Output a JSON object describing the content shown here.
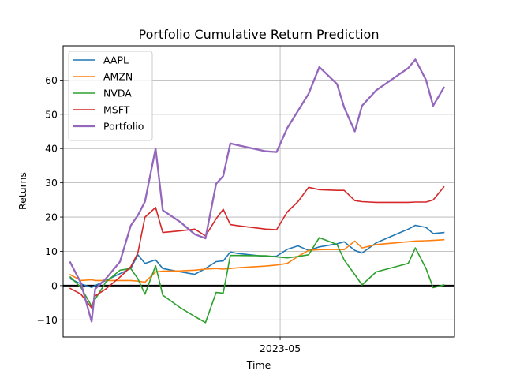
{
  "chart_data": {
    "type": "line",
    "title": "Portfolio Cumulative Return Prediction",
    "xlabel": "Time",
    "ylabel": "Returns",
    "xlim": [
      "2023-03-01",
      "2023-06-19"
    ],
    "ylim": [
      -15,
      70
    ],
    "yticks": [
      -10,
      0,
      10,
      20,
      30,
      40,
      50,
      60
    ],
    "xticks": [
      {
        "date": "2023-05-01",
        "label": "2023-05"
      }
    ],
    "grid": true,
    "zero_line": 0,
    "legend_position": "top-left",
    "x": [
      "2023-03-03",
      "2023-03-06",
      "2023-03-09",
      "2023-03-10",
      "2023-03-13",
      "2023-03-17",
      "2023-03-20",
      "2023-03-22",
      "2023-03-24",
      "2023-03-27",
      "2023-03-29",
      "2023-04-03",
      "2023-04-07",
      "2023-04-10",
      "2023-04-13",
      "2023-04-15",
      "2023-04-17",
      "2023-04-19",
      "2023-04-27",
      "2023-04-30",
      "2023-05-03",
      "2023-05-06",
      "2023-05-09",
      "2023-05-12",
      "2023-05-17",
      "2023-05-19",
      "2023-05-22",
      "2023-05-24",
      "2023-05-28",
      "2023-06-06",
      "2023-06-08",
      "2023-06-11",
      "2023-06-13",
      "2023-06-16"
    ],
    "series": [
      {
        "name": "AAPL",
        "color": "#1f77b4",
        "values": [
          2.0,
          0.5,
          -0.5,
          0.0,
          1.5,
          3.5,
          5.0,
          9.0,
          6.5,
          7.5,
          5.0,
          4.0,
          3.3,
          5.0,
          7.0,
          7.2,
          9.8,
          9.4,
          8.5,
          8.6,
          10.6,
          11.6,
          10.3,
          11.3,
          12.2,
          12.8,
          10.3,
          9.5,
          12.5,
          16.5,
          17.6,
          17.0,
          15.2,
          15.5
        ]
      },
      {
        "name": "AMZN",
        "color": "#ff7f0e",
        "values": [
          3.2,
          1.5,
          1.7,
          1.5,
          1.5,
          1.5,
          1.5,
          1.3,
          1.0,
          4.0,
          4.2,
          4.3,
          4.5,
          4.8,
          5.0,
          4.8,
          5.0,
          5.2,
          5.7,
          6.0,
          6.5,
          8.5,
          10.3,
          10.5,
          10.6,
          10.5,
          13.0,
          11.0,
          12.0,
          12.8,
          13.0,
          13.1,
          13.2,
          13.4
        ]
      },
      {
        "name": "NVDA",
        "color": "#2ca02c",
        "values": [
          2.5,
          -0.5,
          -6.0,
          -4.0,
          1.0,
          4.5,
          5.0,
          2.0,
          -2.5,
          5.8,
          -2.8,
          -6.5,
          -9.0,
          -10.8,
          -2.0,
          -2.2,
          8.8,
          8.8,
          8.7,
          8.4,
          8.1,
          8.5,
          9.0,
          14.0,
          12.0,
          7.5,
          3.2,
          0.2,
          4.0,
          6.5,
          11.0,
          5.0,
          -0.6,
          0.2
        ]
      },
      {
        "name": "MSFT",
        "color": "#d62728",
        "values": [
          -0.8,
          -2.5,
          -6.5,
          -3.0,
          -1.0,
          2.5,
          5.5,
          9.5,
          20.0,
          22.8,
          15.5,
          16.0,
          16.5,
          14.5,
          19.5,
          22.3,
          17.8,
          17.5,
          16.5,
          16.3,
          21.5,
          24.5,
          28.7,
          28.0,
          27.8,
          27.8,
          24.8,
          24.5,
          24.3,
          24.3,
          24.4,
          24.4,
          25.0,
          28.8
        ]
      },
      {
        "name": "Portfolio",
        "color": "#9467bd",
        "values": [
          6.8,
          0.8,
          -10.5,
          -1.0,
          2.0,
          7.0,
          17.5,
          20.5,
          24.5,
          40.0,
          22.0,
          18.5,
          15.0,
          13.8,
          29.7,
          32.0,
          41.5,
          41.0,
          39.2,
          39.0,
          46.0,
          51.0,
          56.0,
          63.8,
          58.8,
          52.0,
          45.0,
          52.5,
          57.0,
          63.5,
          66.0,
          60.0,
          52.5,
          57.8
        ]
      }
    ]
  }
}
